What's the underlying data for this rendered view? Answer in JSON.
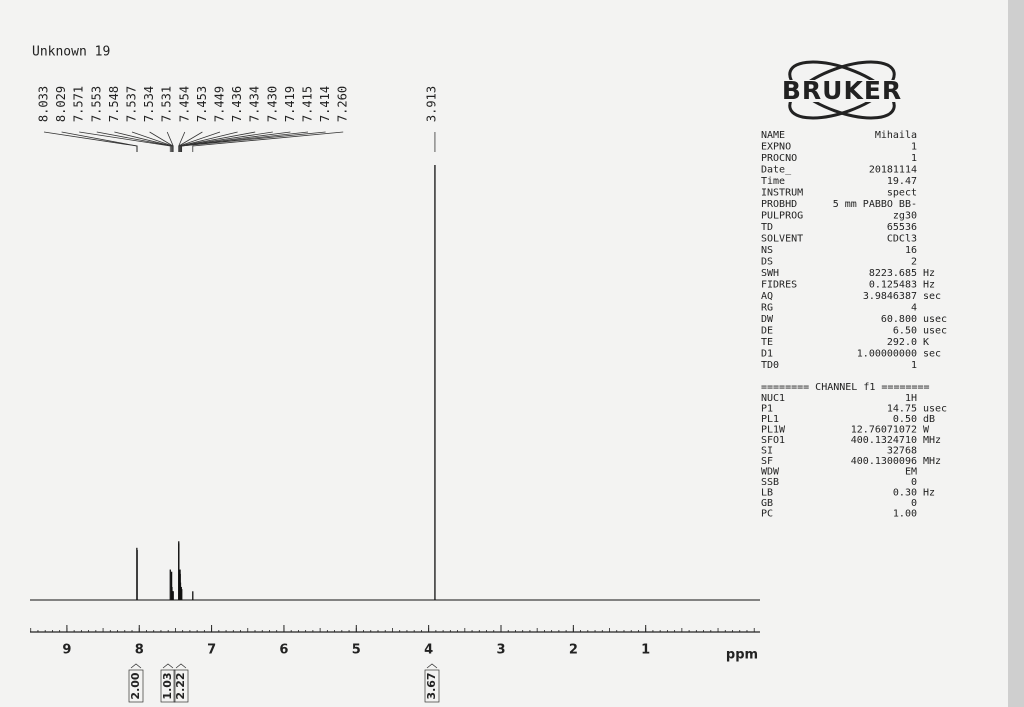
{
  "chart_data": {
    "type": "spectrum",
    "title": "Unknown 19",
    "x_label": "ppm",
    "xlim": [
      9.51,
      -0.58
    ],
    "xticks": [
      9,
      8,
      7,
      6,
      5,
      4,
      3,
      2,
      1
    ],
    "ylim": [
      0,
      100
    ],
    "color": "#111111",
    "series": [
      {
        "name": "1H",
        "x": [
          8.033,
          8.029,
          7.571,
          7.553,
          7.548,
          7.537,
          7.534,
          7.531,
          7.454,
          7.453,
          7.449,
          7.436,
          7.434,
          {
            "value": 7.43,
            "label": "7.430"
          },
          7.419,
          7.415,
          7.414,
          {
            "value": 7.26,
            "label": "7.260"
          },
          3.913
        ],
        "values": [
          12,
          11.5,
          7,
          6.5,
          3,
          2,
          2,
          2,
          13.5,
          13,
          6,
          7,
          6,
          4,
          3,
          2.5,
          2.5,
          2,
          100
        ]
      }
    ],
    "integrals": [
      {
        "value": 2,
        "label": "2.00"
      },
      1.03,
      2.22,
      3.67
    ]
  },
  "logo": "BRUKER",
  "parameters": [
    [
      "NAME",
      "Mihaila",
      ""
    ],
    [
      "EXPNO",
      "1",
      ""
    ],
    [
      "PROCNO",
      "1",
      ""
    ],
    [
      "Date_",
      "20181114",
      ""
    ],
    [
      "Time",
      "19.47",
      ""
    ],
    [
      "INSTRUM",
      "spect",
      ""
    ],
    [
      "PROBHD",
      "5 mm PABBO BB-",
      ""
    ],
    [
      "PULPROG",
      "zg30",
      ""
    ],
    [
      "TD",
      "65536",
      ""
    ],
    [
      "SOLVENT",
      "CDCl3",
      ""
    ],
    [
      "NS",
      "16",
      ""
    ],
    [
      "DS",
      "2",
      ""
    ],
    [
      "SWH",
      "8223.685",
      "Hz"
    ],
    [
      "FIDRES",
      "0.125483",
      "Hz"
    ],
    [
      "AQ",
      "3.9846387",
      "sec"
    ],
    [
      "RG",
      "4",
      ""
    ],
    [
      "DW",
      "60.800",
      "usec"
    ],
    [
      "DE",
      "6.50",
      "usec"
    ],
    [
      "TE",
      "292.0",
      "K"
    ],
    [
      "D1",
      "1.00000000",
      "sec"
    ],
    [
      "TD0",
      "1",
      ""
    ]
  ],
  "channel_title": "======== CHANNEL f1 ========",
  "channel": [
    [
      "NUC1",
      "1H",
      ""
    ],
    [
      "P1",
      "14.75",
      "usec"
    ],
    [
      "PL1",
      "0.50",
      "dB"
    ],
    [
      "PL1W",
      "12.76071072",
      "W"
    ],
    [
      "SFO1",
      "400.1324710",
      "MHz"
    ],
    [
      "SI",
      "32768",
      ""
    ],
    [
      "SF",
      "400.1300096",
      "MHz"
    ],
    [
      "WDW",
      "EM",
      ""
    ],
    [
      "SSB",
      "0",
      ""
    ],
    [
      "LB",
      "0.30",
      "Hz"
    ],
    [
      "GB",
      "0",
      ""
    ],
    [
      "PC",
      "1.00",
      ""
    ]
  ]
}
